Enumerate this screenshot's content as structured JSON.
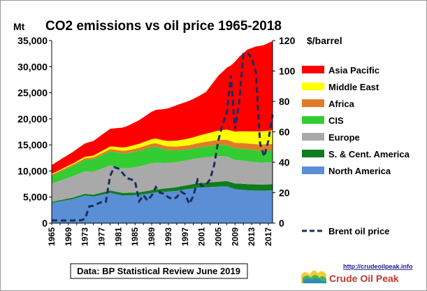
{
  "chart_data": {
    "type": "area",
    "title": "CO2 emissions vs oil price 1965-2018",
    "ylabel": "Mt",
    "y2label": "$/barrel",
    "ylim": [
      0,
      35000
    ],
    "y2lim": [
      0,
      120
    ],
    "yticks": [
      "0",
      "5,000",
      "10,000",
      "15,000",
      "20,000",
      "25,000",
      "30,000",
      "35,000"
    ],
    "y2ticks": [
      "0",
      "20",
      "40",
      "60",
      "80",
      "100",
      "120"
    ],
    "xlim": [
      1965,
      2018
    ],
    "xticks": [
      "1965",
      "1969",
      "1973",
      "1977",
      "1981",
      "1985",
      "1989",
      "1993",
      "1997",
      "2001",
      "2005",
      "2009",
      "2013",
      "2017"
    ],
    "grid": false,
    "legend": "right",
    "stacked": true,
    "series": [
      {
        "name": "North America",
        "color": "#5b8fd5",
        "points": [
          [
            1965,
            3900
          ],
          [
            1970,
            4600
          ],
          [
            1973,
            5300
          ],
          [
            1975,
            5100
          ],
          [
            1979,
            5800
          ],
          [
            1982,
            5300
          ],
          [
            1986,
            5400
          ],
          [
            1990,
            5900
          ],
          [
            1995,
            6200
          ],
          [
            2000,
            6800
          ],
          [
            2005,
            7000
          ],
          [
            2007,
            7050
          ],
          [
            2009,
            6500
          ],
          [
            2012,
            6300
          ],
          [
            2015,
            6200
          ],
          [
            2018,
            6300
          ]
        ]
      },
      {
        "name": "S. & Cent. America",
        "color": "#0f7d1e",
        "points": [
          [
            1965,
            200
          ],
          [
            1970,
            280
          ],
          [
            1975,
            360
          ],
          [
            1980,
            480
          ],
          [
            1985,
            500
          ],
          [
            1990,
            560
          ],
          [
            1995,
            700
          ],
          [
            2000,
            850
          ],
          [
            2005,
            950
          ],
          [
            2010,
            1150
          ],
          [
            2015,
            1200
          ],
          [
            2018,
            1150
          ]
        ]
      },
      {
        "name": "Europe",
        "color": "#a9a9a9",
        "points": [
          [
            1965,
            3500
          ],
          [
            1970,
            4100
          ],
          [
            1975,
            4400
          ],
          [
            1979,
            4800
          ],
          [
            1983,
            4700
          ],
          [
            1989,
            5200
          ],
          [
            1992,
            4900
          ],
          [
            1995,
            4800
          ],
          [
            2000,
            4800
          ],
          [
            2005,
            4900
          ],
          [
            2009,
            4500
          ],
          [
            2012,
            4400
          ],
          [
            2015,
            4200
          ],
          [
            2018,
            4200
          ]
        ]
      },
      {
        "name": "CIS",
        "color": "#33cc33",
        "points": [
          [
            1965,
            1500
          ],
          [
            1970,
            1950
          ],
          [
            1975,
            2400
          ],
          [
            1980,
            2750
          ],
          [
            1985,
            2950
          ],
          [
            1990,
            3100
          ],
          [
            1993,
            2400
          ],
          [
            1998,
            2000
          ],
          [
            2005,
            2150
          ],
          [
            2010,
            2250
          ],
          [
            2018,
            2300
          ]
        ]
      },
      {
        "name": "Africa",
        "color": "#e07b28",
        "points": [
          [
            1965,
            200
          ],
          [
            1970,
            260
          ],
          [
            1975,
            340
          ],
          [
            1980,
            480
          ],
          [
            1985,
            580
          ],
          [
            1990,
            650
          ],
          [
            1995,
            730
          ],
          [
            2000,
            820
          ],
          [
            2005,
            960
          ],
          [
            2010,
            1100
          ],
          [
            2018,
            1250
          ]
        ]
      },
      {
        "name": "Middle East",
        "color": "#ffff00",
        "points": [
          [
            1965,
            150
          ],
          [
            1970,
            220
          ],
          [
            1975,
            350
          ],
          [
            1980,
            550
          ],
          [
            1985,
            750
          ],
          [
            1990,
            900
          ],
          [
            1995,
            1150
          ],
          [
            2000,
            1400
          ],
          [
            2005,
            1800
          ],
          [
            2010,
            2200
          ],
          [
            2015,
            2500
          ],
          [
            2018,
            2600
          ]
        ]
      },
      {
        "name": "Asia Pacific",
        "color": "#ff0000",
        "points": [
          [
            1965,
            1700
          ],
          [
            1970,
            2200
          ],
          [
            1975,
            2800
          ],
          [
            1980,
            3500
          ],
          [
            1985,
            4300
          ],
          [
            1990,
            5500
          ],
          [
            1995,
            6800
          ],
          [
            2000,
            7500
          ],
          [
            2002,
            8000
          ],
          [
            2005,
            10500
          ],
          [
            2008,
            12500
          ],
          [
            2010,
            14300
          ],
          [
            2012,
            15700
          ],
          [
            2014,
            16300
          ],
          [
            2016,
            16500
          ],
          [
            2018,
            17100
          ]
        ]
      }
    ],
    "line_series": {
      "name": "Brent oil price",
      "color": "#1a2e5c",
      "axis": "right",
      "points": [
        [
          1965,
          1.8
        ],
        [
          1970,
          1.8
        ],
        [
          1972,
          1.9
        ],
        [
          1973,
          2.8
        ],
        [
          1974,
          11
        ],
        [
          1975,
          11.5
        ],
        [
          1976,
          12.8
        ],
        [
          1977,
          13.9
        ],
        [
          1978,
          14
        ],
        [
          1979,
          31
        ],
        [
          1980,
          36.8
        ],
        [
          1981,
          35.9
        ],
        [
          1982,
          33
        ],
        [
          1983,
          29.6
        ],
        [
          1984,
          28.8
        ],
        [
          1985,
          27.6
        ],
        [
          1986,
          14.4
        ],
        [
          1987,
          18.4
        ],
        [
          1988,
          14.9
        ],
        [
          1989,
          18.2
        ],
        [
          1990,
          23.7
        ],
        [
          1991,
          20
        ],
        [
          1992,
          19.3
        ],
        [
          1993,
          17
        ],
        [
          1994,
          15.8
        ],
        [
          1995,
          17
        ],
        [
          1996,
          20.7
        ],
        [
          1997,
          19.1
        ],
        [
          1998,
          12.7
        ],
        [
          1999,
          17.9
        ],
        [
          2000,
          28.5
        ],
        [
          2001,
          24.4
        ],
        [
          2002,
          25
        ],
        [
          2003,
          28.8
        ],
        [
          2004,
          38.3
        ],
        [
          2005,
          54.5
        ],
        [
          2006,
          65.1
        ],
        [
          2007,
          72.4
        ],
        [
          2008,
          97
        ],
        [
          2009,
          61.7
        ],
        [
          2010,
          79.5
        ],
        [
          2011,
          111.3
        ],
        [
          2012,
          111.7
        ],
        [
          2013,
          108.7
        ],
        [
          2014,
          98.9
        ],
        [
          2015,
          52.4
        ],
        [
          2016,
          43.7
        ],
        [
          2017,
          54.2
        ],
        [
          2018,
          71.3
        ]
      ]
    }
  },
  "source_text": "Data: BP Statistical Review June 2019",
  "logo": {
    "url": "http://crudeoilpeak.info",
    "name": "Crude Oil Peak"
  }
}
